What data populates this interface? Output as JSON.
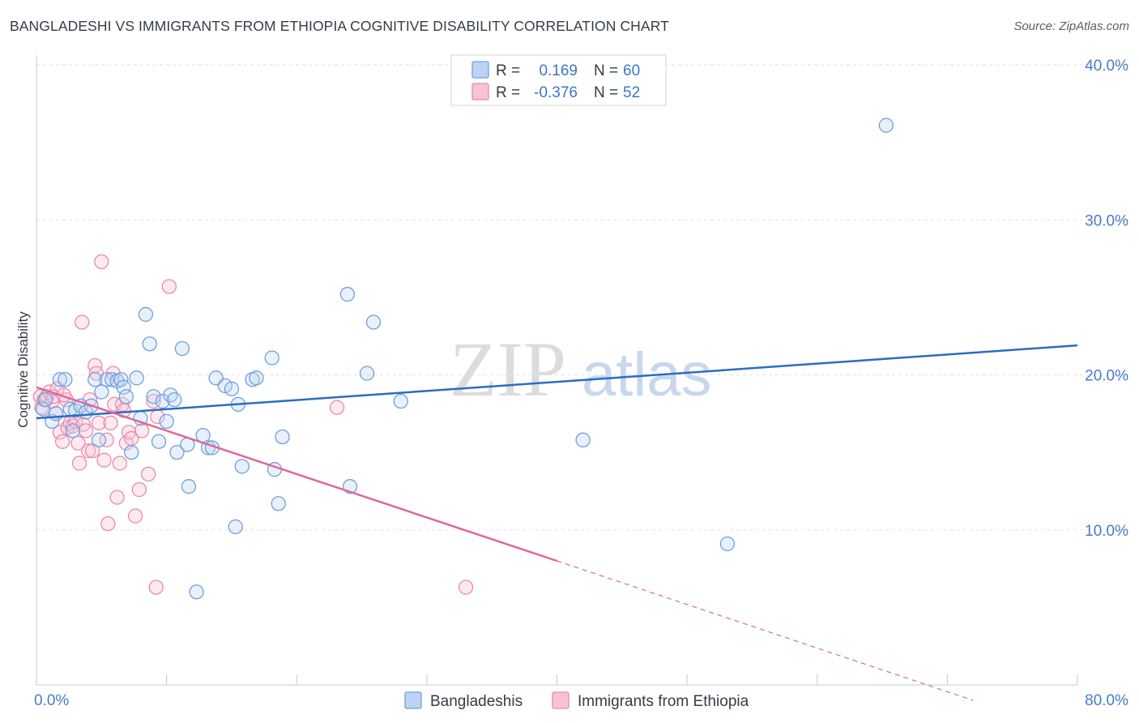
{
  "header": {
    "title": "BANGLADESHI VS IMMIGRANTS FROM ETHIOPIA COGNITIVE DISABILITY CORRELATION CHART",
    "source": "Source: ZipAtlas.com"
  },
  "watermark": {
    "zip": "ZIP",
    "atlas": "atlas"
  },
  "legend": {
    "r_label": "R =",
    "n_label": "N =",
    "entries": [
      {
        "r": "0.169",
        "n": "60",
        "color": "#6f9fde",
        "fill": "#bcd3f3"
      },
      {
        "r": "-0.376",
        "n": "52",
        "color": "#e98aab",
        "fill": "#f8c3d4"
      }
    ]
  },
  "bottom_legend": [
    {
      "label": "Bangladeshis"
    },
    {
      "label": "Immigrants from Ethiopia"
    }
  ],
  "colors": {
    "blue_stroke": "#6f9fde",
    "blue_fill": "#bcd3f3",
    "blue_line": "#2a6cc4",
    "pink_stroke": "#e98aab",
    "pink_fill": "#f8c3d4",
    "pink_line": "#e0679a",
    "axis_label": "#4a7ac8"
  },
  "chart_data": {
    "type": "scatter",
    "title": "BANGLADESHI VS IMMIGRANTS FROM ETHIOPIA COGNITIVE DISABILITY CORRELATION CHART",
    "xlabel": "",
    "ylabel": "Cognitive Disability",
    "xlim": [
      0,
      80
    ],
    "ylim": [
      0,
      40
    ],
    "x_ticks": [
      {
        "value": 0,
        "label": "0.0%"
      },
      {
        "value": 80,
        "label": "80.0%"
      }
    ],
    "y_ticks": [
      {
        "value": 10,
        "label": "10.0%"
      },
      {
        "value": 20,
        "label": "20.0%"
      },
      {
        "value": 30,
        "label": "30.0%"
      },
      {
        "value": 40,
        "label": "40.0%"
      }
    ],
    "grid": "horizontal dashed",
    "legend_position": "top-center",
    "series": [
      {
        "name": "Bangladeshis",
        "trend": {
          "x": [
            0,
            80
          ],
          "y": [
            17.2,
            21.9
          ]
        },
        "points": [
          [
            0.5,
            17.8
          ],
          [
            0.7,
            18.4
          ],
          [
            1.2,
            17.0
          ],
          [
            1.5,
            17.5
          ],
          [
            1.8,
            19.7
          ],
          [
            2.2,
            19.7
          ],
          [
            2.6,
            17.8
          ],
          [
            2.8,
            16.4
          ],
          [
            3.0,
            17.7
          ],
          [
            3.4,
            18.0
          ],
          [
            3.8,
            17.6
          ],
          [
            4.2,
            18.0
          ],
          [
            4.5,
            19.7
          ],
          [
            4.8,
            15.8
          ],
          [
            5.0,
            18.9
          ],
          [
            5.4,
            19.7
          ],
          [
            5.8,
            19.7
          ],
          [
            6.2,
            19.6
          ],
          [
            6.5,
            19.7
          ],
          [
            6.7,
            19.2
          ],
          [
            6.9,
            18.6
          ],
          [
            7.3,
            15.0
          ],
          [
            7.7,
            19.8
          ],
          [
            8.0,
            17.2
          ],
          [
            8.4,
            23.9
          ],
          [
            8.7,
            22.0
          ],
          [
            9.0,
            18.6
          ],
          [
            9.4,
            15.7
          ],
          [
            9.7,
            18.3
          ],
          [
            10.0,
            17.0
          ],
          [
            10.3,
            18.7
          ],
          [
            10.6,
            18.4
          ],
          [
            10.8,
            15.0
          ],
          [
            11.2,
            21.7
          ],
          [
            11.6,
            15.5
          ],
          [
            11.7,
            12.8
          ],
          [
            12.3,
            6.0
          ],
          [
            12.8,
            16.1
          ],
          [
            13.2,
            15.3
          ],
          [
            13.5,
            15.3
          ],
          [
            13.8,
            19.8
          ],
          [
            14.5,
            19.3
          ],
          [
            15.0,
            19.1
          ],
          [
            15.3,
            10.2
          ],
          [
            15.5,
            18.1
          ],
          [
            15.8,
            14.1
          ],
          [
            16.6,
            19.7
          ],
          [
            16.9,
            19.8
          ],
          [
            18.1,
            21.1
          ],
          [
            18.3,
            13.9
          ],
          [
            18.6,
            11.7
          ],
          [
            18.9,
            16.0
          ],
          [
            23.9,
            25.2
          ],
          [
            24.1,
            12.8
          ],
          [
            25.4,
            20.1
          ],
          [
            25.9,
            23.4
          ],
          [
            42.0,
            15.8
          ],
          [
            53.1,
            9.1
          ],
          [
            65.3,
            36.1
          ],
          [
            28.0,
            18.3
          ]
        ]
      },
      {
        "name": "Immigrants from Ethiopia",
        "trend": {
          "x": [
            0,
            40
          ],
          "y": [
            19.2,
            8.0
          ]
        },
        "trend_dashed": {
          "x": [
            40,
            72
          ],
          "y": [
            8.0,
            -1.0
          ]
        },
        "points": [
          [
            0.3,
            18.6
          ],
          [
            0.4,
            17.9
          ],
          [
            0.6,
            18.4
          ],
          [
            0.8,
            18.6
          ],
          [
            1.0,
            18.9
          ],
          [
            1.2,
            18.3
          ],
          [
            1.3,
            18.6
          ],
          [
            1.5,
            17.5
          ],
          [
            1.6,
            19.1
          ],
          [
            1.8,
            16.3
          ],
          [
            2.0,
            15.7
          ],
          [
            2.3,
            18.4
          ],
          [
            2.4,
            16.6
          ],
          [
            2.6,
            16.9
          ],
          [
            2.8,
            16.7
          ],
          [
            3.0,
            17.0
          ],
          [
            3.2,
            15.6
          ],
          [
            3.3,
            14.3
          ],
          [
            3.5,
            23.4
          ],
          [
            3.6,
            16.8
          ],
          [
            3.8,
            16.4
          ],
          [
            4.0,
            15.1
          ],
          [
            4.1,
            18.4
          ],
          [
            4.3,
            15.1
          ],
          [
            4.5,
            20.6
          ],
          [
            4.6,
            20.1
          ],
          [
            4.8,
            16.9
          ],
          [
            5.0,
            27.3
          ],
          [
            5.2,
            14.5
          ],
          [
            5.4,
            15.8
          ],
          [
            5.5,
            10.4
          ],
          [
            5.7,
            16.9
          ],
          [
            5.9,
            20.1
          ],
          [
            6.0,
            18.1
          ],
          [
            6.2,
            12.1
          ],
          [
            6.4,
            14.3
          ],
          [
            6.6,
            18.1
          ],
          [
            6.7,
            17.7
          ],
          [
            6.9,
            15.6
          ],
          [
            7.1,
            16.3
          ],
          [
            7.3,
            15.9
          ],
          [
            7.6,
            10.9
          ],
          [
            7.9,
            12.6
          ],
          [
            8.1,
            16.4
          ],
          [
            8.6,
            13.6
          ],
          [
            9.0,
            18.3
          ],
          [
            9.2,
            6.3
          ],
          [
            9.3,
            17.3
          ],
          [
            10.2,
            25.7
          ],
          [
            23.1,
            17.9
          ],
          [
            33.0,
            6.3
          ],
          [
            2.1,
            18.7
          ]
        ]
      }
    ]
  }
}
